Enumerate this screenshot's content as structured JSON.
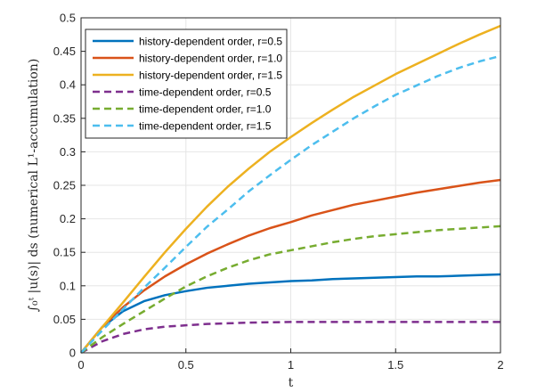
{
  "chart_data": {
    "type": "line",
    "title": "",
    "xlabel": "t",
    "ylabel": "∫₀ᵗ |u(s)| ds (numerical L¹-accumulation)",
    "xlim": [
      0,
      2
    ],
    "ylim": [
      0,
      0.5
    ],
    "xticks": [
      0,
      0.5,
      1,
      1.5,
      2
    ],
    "xtick_labels": [
      "0",
      "0.5",
      "1",
      "1.5",
      "2"
    ],
    "yticks": [
      0,
      0.05,
      0.1,
      0.15,
      0.2,
      0.25,
      0.3,
      0.35,
      0.4,
      0.45,
      0.5
    ],
    "ytick_labels": [
      "0",
      "0.05",
      "0.1",
      "0.15",
      "0.2",
      "0.25",
      "0.3",
      "0.35",
      "0.4",
      "0.45",
      "0.5"
    ],
    "grid": true,
    "legend_position": "top-left",
    "x": [
      0,
      0.1,
      0.2,
      0.3,
      0.4,
      0.5,
      0.6,
      0.7,
      0.8,
      0.9,
      1.0,
      1.1,
      1.2,
      1.3,
      1.4,
      1.5,
      1.6,
      1.7,
      1.8,
      1.9,
      2.0
    ],
    "series": [
      {
        "name": "history-dependent order, r=0.5",
        "color": "#0072BD",
        "style": "solid",
        "values": [
          0,
          0.038,
          0.062,
          0.077,
          0.086,
          0.092,
          0.097,
          0.1,
          0.103,
          0.105,
          0.107,
          0.108,
          0.11,
          0.111,
          0.112,
          0.113,
          0.114,
          0.114,
          0.115,
          0.116,
          0.117
        ]
      },
      {
        "name": "history-dependent order, r=1.0",
        "color": "#D95319",
        "style": "solid",
        "values": [
          0,
          0.038,
          0.068,
          0.093,
          0.114,
          0.132,
          0.148,
          0.162,
          0.175,
          0.186,
          0.195,
          0.205,
          0.213,
          0.221,
          0.227,
          0.233,
          0.239,
          0.244,
          0.249,
          0.254,
          0.258
        ]
      },
      {
        "name": "history-dependent order, r=1.5",
        "color": "#EDB120",
        "style": "solid",
        "values": [
          0,
          0.038,
          0.075,
          0.113,
          0.15,
          0.185,
          0.218,
          0.248,
          0.275,
          0.3,
          0.322,
          0.343,
          0.363,
          0.382,
          0.399,
          0.416,
          0.431,
          0.446,
          0.461,
          0.475,
          0.488
        ]
      },
      {
        "name": "time-dependent order, r=0.5",
        "color": "#7E2F8E",
        "style": "dashed",
        "values": [
          0,
          0.017,
          0.028,
          0.035,
          0.039,
          0.041,
          0.043,
          0.044,
          0.045,
          0.0455,
          0.046,
          0.046,
          0.046,
          0.046,
          0.046,
          0.046,
          0.046,
          0.046,
          0.046,
          0.046,
          0.046
        ]
      },
      {
        "name": "time-dependent order, r=1.0",
        "color": "#77AC30",
        "style": "dashed",
        "values": [
          0,
          0.023,
          0.043,
          0.062,
          0.081,
          0.099,
          0.114,
          0.127,
          0.138,
          0.147,
          0.153,
          0.159,
          0.165,
          0.17,
          0.174,
          0.177,
          0.18,
          0.183,
          0.185,
          0.187,
          0.189
        ]
      },
      {
        "name": "time-dependent order, r=1.5",
        "color": "#4DBEEE",
        "style": "dashed",
        "values": [
          0,
          0.033,
          0.065,
          0.097,
          0.127,
          0.158,
          0.188,
          0.214,
          0.241,
          0.265,
          0.288,
          0.31,
          0.33,
          0.35,
          0.368,
          0.385,
          0.399,
          0.413,
          0.425,
          0.435,
          0.443
        ]
      }
    ]
  }
}
